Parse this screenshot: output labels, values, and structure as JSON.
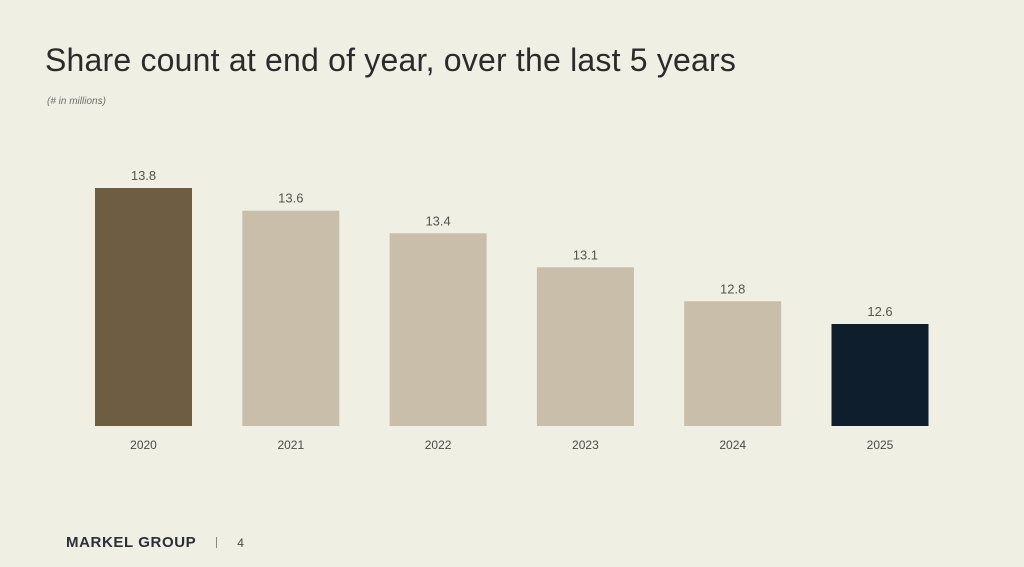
{
  "slide": {
    "title": "Share count at end of year, over the last 5 years",
    "subtitle": "(# in millions)",
    "footer": {
      "brand": "MARKEL GROUP",
      "separator": "|",
      "page_number": "4"
    }
  },
  "chart_data": {
    "type": "bar",
    "categories": [
      "2020",
      "2021",
      "2022",
      "2023",
      "2024",
      "2025"
    ],
    "values": [
      13.8,
      13.6,
      13.4,
      13.1,
      12.8,
      12.6
    ],
    "data_labels": [
      "13.8",
      "13.6",
      "13.4",
      "13.1",
      "12.8",
      "12.6"
    ],
    "bar_colors": [
      "#6e5d43",
      "#c8bea9",
      "#c8bea9",
      "#c8bea9",
      "#c8bea9",
      "#0f1e2c"
    ],
    "title": "Share count at end of year, over the last 5 years",
    "xlabel": "",
    "ylabel": "",
    "ylim": [
      11.7,
      13.8
    ],
    "grid": false,
    "legend": "none"
  }
}
